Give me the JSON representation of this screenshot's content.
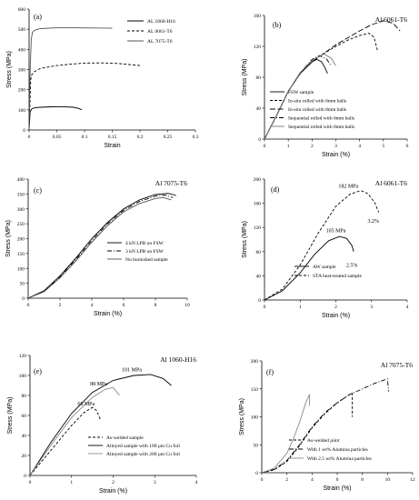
{
  "chart_data": [
    {
      "type": "line",
      "letter": "(a)",
      "title": "",
      "xlabel": "Strain",
      "ylabel": "Stress (MPa)",
      "xlim": [
        0,
        0.3
      ],
      "ylim": [
        0,
        600
      ],
      "xticks": [
        "0",
        "0.05",
        "0.1",
        "0.15",
        "0.2",
        "0.25",
        "0.3"
      ],
      "xtickvals": [
        0,
        0.05,
        0.1,
        0.15,
        0.2,
        0.25,
        0.3
      ],
      "yticks": [
        "0",
        "100",
        "200",
        "300",
        "400",
        "500",
        "600"
      ],
      "ytickvals": [
        0,
        100,
        200,
        300,
        400,
        500,
        600
      ],
      "legend_position": "top-right",
      "series": [
        {
          "name": "AL 1060-H16",
          "style": "solid",
          "color": "#000000",
          "x": [
            0,
            0.002,
            0.005,
            0.01,
            0.02,
            0.04,
            0.06,
            0.08,
            0.09,
            0.095
          ],
          "y": [
            0,
            90,
            105,
            110,
            113,
            115,
            116,
            113,
            107,
            100
          ]
        },
        {
          "name": "AL 6061-T6",
          "style": "dashed",
          "color": "#000000",
          "x": [
            0,
            0.003,
            0.005,
            0.01,
            0.02,
            0.05,
            0.08,
            0.1,
            0.13,
            0.16,
            0.18,
            0.2
          ],
          "y": [
            0,
            250,
            275,
            290,
            305,
            320,
            328,
            332,
            333,
            330,
            325,
            320
          ]
        },
        {
          "name": "AL 7075-T6",
          "style": "solid-gray",
          "color": "#555555",
          "x": [
            0,
            0.002,
            0.004,
            0.006,
            0.01,
            0.02,
            0.05,
            0.08,
            0.12,
            0.15
          ],
          "y": [
            0,
            300,
            450,
            485,
            495,
            503,
            507,
            507,
            506,
            505
          ]
        }
      ]
    },
    {
      "type": "line",
      "letter": "(b)",
      "title": "Al 6061-T6",
      "xlabel": "Strain (%)",
      "ylabel": "Stress (MPa)",
      "xlim": [
        0,
        6
      ],
      "ylim": [
        0,
        160
      ],
      "xticks": [
        "0",
        "1",
        "2",
        "3",
        "4",
        "5",
        "6"
      ],
      "xtickvals": [
        0,
        1,
        2,
        3,
        4,
        5,
        6
      ],
      "yticks": [
        "0",
        "40",
        "80",
        "120",
        "160"
      ],
      "ytickvals": [
        0,
        40,
        80,
        120,
        160
      ],
      "legend_position": "bottom-center",
      "series": [
        {
          "name": "FSW sample",
          "style": "solid",
          "color": "#000000",
          "x": [
            0,
            0.5,
            1,
            1.5,
            2,
            2.2,
            2.4,
            2.55,
            2.65
          ],
          "y": [
            0,
            30,
            62,
            85,
            100,
            103,
            100,
            92,
            85
          ]
        },
        {
          "name": "In-situ rolled with 6mm balls",
          "style": "dashed",
          "color": "#000000",
          "x": [
            0,
            0.5,
            1,
            1.5,
            2,
            2.5,
            3,
            3.5,
            4,
            4.4,
            4.6,
            4.75
          ],
          "y": [
            0,
            30,
            62,
            85,
            100,
            111,
            120,
            128,
            134,
            137,
            132,
            115
          ]
        },
        {
          "name": "In-situ rolled with 8mm balls",
          "style": "dashed-long",
          "color": "#000000",
          "x": [
            0,
            0.5,
            1,
            1.5,
            2,
            3,
            4,
            4.5,
            5,
            5.4,
            5.7
          ],
          "y": [
            0,
            30,
            62,
            85,
            100,
            122,
            140,
            148,
            153,
            150,
            140
          ]
        },
        {
          "name": "Sequential rolled with 6mm balls",
          "style": "dash-dot",
          "color": "#000000",
          "x": [
            0,
            0.5,
            1,
            1.5,
            2,
            2.3,
            2.6,
            2.8
          ],
          "y": [
            0,
            30,
            62,
            86,
            103,
            108,
            104,
            95
          ]
        },
        {
          "name": "Sequential rolled with 8mm balls",
          "style": "solid-gray",
          "color": "#777777",
          "x": [
            0,
            0.5,
            1,
            1.5,
            2,
            2.5,
            2.8,
            3
          ],
          "y": [
            0,
            30,
            62,
            86,
            102,
            110,
            105,
            95
          ]
        }
      ]
    },
    {
      "type": "line",
      "letter": "(c)",
      "title": "Al 7075-T6",
      "xlabel": "Strain (%)",
      "ylabel": "Stress (MPa)",
      "xlim": [
        0,
        10
      ],
      "ylim": [
        0,
        400
      ],
      "xticks": [
        "0",
        "2",
        "4",
        "6",
        "8",
        "10"
      ],
      "xtickvals": [
        0,
        2,
        4,
        6,
        8,
        10
      ],
      "yticks": [
        "0",
        "50",
        "100",
        "150",
        "200",
        "250",
        "300",
        "350",
        "400"
      ],
      "ytickvals": [
        0,
        50,
        100,
        150,
        200,
        250,
        300,
        350,
        400
      ],
      "legend_position": "bottom-right",
      "series": [
        {
          "name": "4 kN LPB on FSW",
          "style": "solid",
          "color": "#000000",
          "x": [
            0,
            1,
            2,
            3,
            4,
            5,
            6,
            7,
            8,
            8.8,
            9.3
          ],
          "y": [
            0,
            25,
            75,
            135,
            200,
            255,
            300,
            330,
            348,
            352,
            345
          ]
        },
        {
          "name": "3 kN LPB on FSW",
          "style": "dash-dot",
          "color": "#000000",
          "x": [
            0,
            1,
            2,
            3,
            4,
            5,
            6,
            7,
            8,
            8.6,
            9.1
          ],
          "y": [
            0,
            24,
            72,
            130,
            194,
            250,
            295,
            325,
            343,
            346,
            338
          ]
        },
        {
          "name": "No burnished sample",
          "style": "solid-gray",
          "color": "#555555",
          "x": [
            0,
            1,
            2,
            3,
            4,
            5,
            6,
            7,
            8,
            8.5,
            9
          ],
          "y": [
            0,
            22,
            68,
            125,
            188,
            244,
            290,
            318,
            335,
            338,
            330
          ]
        }
      ]
    },
    {
      "type": "line",
      "letter": "(d)",
      "title": "Al 6061-T6",
      "xlabel": "Strain (%)",
      "ylabel": "Stress (MPa)",
      "xlim": [
        0,
        4
      ],
      "ylim": [
        0,
        200
      ],
      "xticks": [
        "0",
        "1",
        "2",
        "3",
        "4"
      ],
      "xtickvals": [
        0,
        1,
        2,
        3,
        4
      ],
      "yticks": [
        "0",
        "40",
        "80",
        "120",
        "160",
        "200"
      ],
      "ytickvals": [
        0,
        40,
        80,
        120,
        160,
        200
      ],
      "legend_position": "bottom-right",
      "annotations": [
        {
          "text": "182 MPa",
          "x": 2.35,
          "y": 186
        },
        {
          "text": "3.2%",
          "x": 3.05,
          "y": 128
        },
        {
          "text": "105 MPa",
          "x": 2.0,
          "y": 112
        },
        {
          "text": "2.5%",
          "x": 2.45,
          "y": 55
        }
      ],
      "series": [
        {
          "name": "AW sample",
          "style": "solid",
          "color": "#000000",
          "x": [
            0,
            0.5,
            1,
            1.4,
            1.8,
            2.1,
            2.3,
            2.45,
            2.5
          ],
          "y": [
            0,
            15,
            45,
            75,
            98,
            105,
            102,
            90,
            80
          ]
        },
        {
          "name": "STA heat-treated sample",
          "style": "dashed",
          "color": "#000000",
          "x": [
            0,
            0.5,
            1,
            1.5,
            2,
            2.4,
            2.7,
            2.9,
            3.1,
            3.2
          ],
          "y": [
            0,
            18,
            58,
            110,
            155,
            175,
            181,
            176,
            160,
            145
          ]
        }
      ]
    },
    {
      "type": "line",
      "letter": "(e)",
      "title": "Al 1060-H16",
      "xlabel": "Strain (%)",
      "ylabel": "Stress (MPa)",
      "xlim": [
        0,
        4
      ],
      "ylim": [
        0,
        120
      ],
      "xticks": [
        "0",
        "1",
        "2",
        "3",
        "4"
      ],
      "xtickvals": [
        0,
        1,
        2,
        3,
        4
      ],
      "yticks": [
        "0",
        "20",
        "40",
        "60",
        "80",
        "100",
        "120"
      ],
      "ytickvals": [
        0,
        20,
        40,
        60,
        80,
        100,
        120
      ],
      "legend_position": "bottom-right",
      "annotations": [
        {
          "text": "101 MPa",
          "x": 2.45,
          "y": 104
        },
        {
          "text": "88 MPa",
          "x": 1.65,
          "y": 90
        },
        {
          "text": "68 MPa",
          "x": 1.35,
          "y": 70
        }
      ],
      "series": [
        {
          "name": "As-welded sample",
          "style": "dashed",
          "color": "#000000",
          "x": [
            0,
            0.5,
            1,
            1.3,
            1.5,
            1.6,
            1.7
          ],
          "y": [
            0,
            25,
            50,
            63,
            68,
            65,
            55
          ]
        },
        {
          "name": "Alloyed sample with 100 μm Cu foil",
          "style": "solid",
          "color": "#000000",
          "x": [
            0,
            0.5,
            1,
            1.5,
            2,
            2.5,
            2.9,
            3.2,
            3.4
          ],
          "y": [
            0,
            33,
            62,
            83,
            95,
            100,
            101,
            97,
            90
          ]
        },
        {
          "name": "Alloyed sample with 200 μm Cu foil",
          "style": "solid-gray",
          "color": "#888888",
          "x": [
            0,
            0.5,
            1,
            1.5,
            1.8,
            2.0,
            2.15
          ],
          "y": [
            0,
            30,
            58,
            78,
            86,
            88,
            80
          ]
        }
      ]
    },
    {
      "type": "line",
      "letter": "(f)",
      "title": "Al 7075-T6",
      "xlabel": "Strain (%)",
      "ylabel": "Stress (MPa)",
      "xlim": [
        0,
        12
      ],
      "ylim": [
        0,
        200
      ],
      "xticks": [
        "0",
        "2",
        "4",
        "6",
        "8",
        "10",
        "12"
      ],
      "xtickvals": [
        0,
        2,
        4,
        6,
        8,
        10,
        12
      ],
      "yticks": [
        "0",
        "50",
        "100",
        "150",
        "200"
      ],
      "ytickvals": [
        0,
        50,
        100,
        150,
        200
      ],
      "legend_position": "bottom-right",
      "series": [
        {
          "name": "As-welded joint",
          "style": "dashed",
          "color": "#000000",
          "x": [
            0,
            1,
            2,
            3,
            4,
            5,
            6,
            7,
            7.2,
            7.2
          ],
          "y": [
            0,
            5,
            20,
            48,
            80,
            105,
            125,
            140,
            142,
            100
          ]
        },
        {
          "name": "With 1 wt% Alumina particles",
          "style": "dash-dot",
          "color": "#000000",
          "x": [
            0,
            1,
            2,
            3,
            4,
            5,
            6,
            7,
            8,
            9,
            10,
            10.1
          ],
          "y": [
            0,
            6,
            22,
            50,
            82,
            107,
            125,
            140,
            150,
            160,
            168,
            145
          ]
        },
        {
          "name": "With 2.5 wt% Alumina particles",
          "style": "solid-gray",
          "color": "#888888",
          "x": [
            0,
            1,
            2,
            2.5,
            3,
            3.5,
            3.8,
            3.8
          ],
          "y": [
            0,
            8,
            35,
            60,
            90,
            125,
            140,
            120
          ]
        }
      ]
    }
  ]
}
